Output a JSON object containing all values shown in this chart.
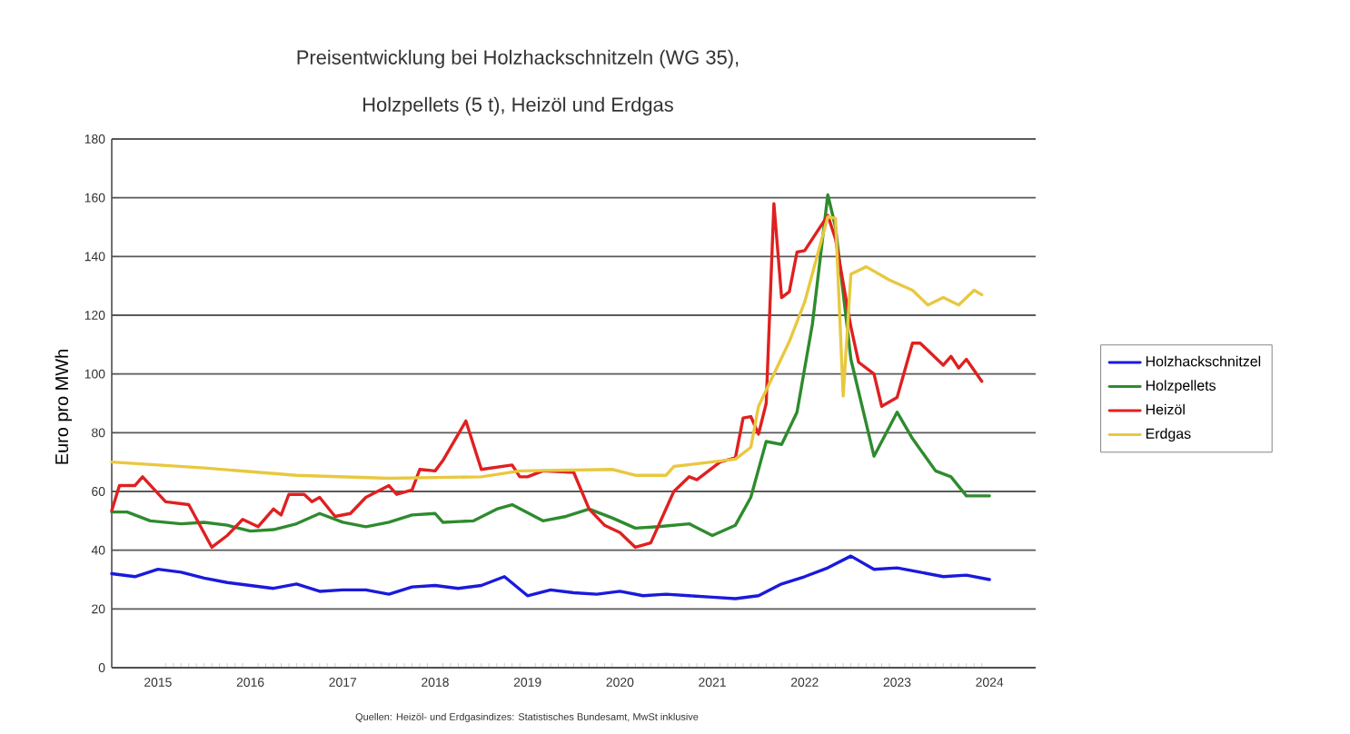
{
  "chart_data": {
    "type": "line",
    "title": "Preisentwicklung bei Holzhackschnitzeln (WG 35),",
    "subtitle": "Holzpellets (5 t), Heizöl und Erdgas",
    "ylabel": "Euro pro MWh",
    "xlim": [
      "2015-01",
      "2025-01"
    ],
    "xticks": [
      {
        "value": "2015-07",
        "label": "2015"
      },
      {
        "value": "2016-01",
        "label": null
      },
      {
        "value": "2016-07",
        "label": "2016"
      },
      {
        "value": "2017-01",
        "label": null
      },
      {
        "value": "2017-07",
        "label": "2017"
      },
      {
        "value": "2018-01",
        "label": null
      },
      {
        "value": "2018-07",
        "label": "2018"
      },
      {
        "value": "2019-01",
        "label": null
      },
      {
        "value": "2019-07",
        "label": "2019"
      },
      {
        "value": "2020-01",
        "label": null
      },
      {
        "value": "2020-07",
        "label": "2020"
      },
      {
        "value": "2021-01",
        "label": null
      },
      {
        "value": "2021-07",
        "label": "2021"
      },
      {
        "value": "2022-01",
        "label": null
      },
      {
        "value": "2022-07",
        "label": "2022"
      },
      {
        "value": "2023-01",
        "label": null
      },
      {
        "value": "2023-07",
        "label": "2023"
      },
      {
        "value": "2024-01",
        "label": null
      },
      {
        "value": "2024-07",
        "label": "2024"
      }
    ],
    "ylim": [
      0,
      180
    ],
    "yticks": [
      0,
      20,
      40,
      60,
      80,
      100,
      120,
      140,
      160,
      180
    ],
    "grid": "y",
    "legend": "right",
    "marker": "none",
    "line_style": "solid",
    "series": [
      {
        "name": "Holzhackschnitzel",
        "color": "#1a1adc",
        "x": [
          "2015-01",
          "2015-04",
          "2015-07",
          "2015-10",
          "2016-01",
          "2016-04",
          "2016-07",
          "2016-10",
          "2017-01",
          "2017-04",
          "2017-07",
          "2017-10",
          "2018-01",
          "2018-04",
          "2018-07",
          "2018-10",
          "2019-01",
          "2019-04",
          "2019-07",
          "2019-10",
          "2020-01",
          "2020-04",
          "2020-07",
          "2020-10",
          "2021-01",
          "2021-04",
          "2021-07",
          "2021-10",
          "2022-01",
          "2022-04",
          "2022-07",
          "2022-10",
          "2023-01",
          "2023-04",
          "2023-07",
          "2023-10",
          "2024-01",
          "2024-04",
          "2024-07"
        ],
        "values": [
          32,
          31,
          33.5,
          32.5,
          30.5,
          29,
          28,
          27,
          28.5,
          26,
          26.5,
          26.5,
          25,
          27.5,
          28,
          27,
          28,
          31,
          24.5,
          26.5,
          25.5,
          25,
          26,
          24.5,
          25,
          24.5,
          24,
          23.5,
          24.5,
          28.5,
          31,
          34,
          38,
          33.5,
          34,
          32.5,
          31,
          31.5,
          30
        ]
      },
      {
        "name": "Holzpellets",
        "color": "#2e8b2e",
        "x": [
          "2015-01",
          "2015-03",
          "2015-06",
          "2015-10",
          "2016-01",
          "2016-04",
          "2016-07",
          "2016-10",
          "2017-01",
          "2017-04",
          "2017-07",
          "2017-10",
          "2018-01",
          "2018-04",
          "2018-07",
          "2018-08",
          "2018-12",
          "2019-03",
          "2019-05",
          "2019-09",
          "2019-12",
          "2020-03",
          "2020-06",
          "2020-09",
          "2020-12",
          "2021-04",
          "2021-07",
          "2021-10",
          "2021-12",
          "2022-02",
          "2022-04",
          "2022-06",
          "2022-08",
          "2022-10",
          "2022-11",
          "2023-01",
          "2023-04",
          "2023-07",
          "2023-09",
          "2023-12",
          "2024-02",
          "2024-04",
          "2024-07"
        ],
        "values": [
          53,
          53,
          50,
          49,
          49.5,
          48.5,
          46.5,
          47,
          49,
          52.5,
          49.5,
          48,
          49.5,
          52,
          52.5,
          49.5,
          50,
          54,
          55.5,
          50,
          51.5,
          54,
          51,
          47.5,
          48,
          49,
          45,
          48.5,
          58,
          77,
          76,
          87,
          117,
          161,
          150,
          105,
          72,
          87,
          78,
          67,
          65,
          58.5,
          58.5
        ]
      },
      {
        "name": "Heizöl",
        "color": "#e02020",
        "x": [
          "2015-01",
          "2015-02",
          "2015-04",
          "2015-05",
          "2015-08",
          "2015-11",
          "2016-02",
          "2016-04",
          "2016-06",
          "2016-08",
          "2016-10",
          "2016-11",
          "2016-12",
          "2017-02",
          "2017-03",
          "2017-04",
          "2017-06",
          "2017-08",
          "2017-10",
          "2018-01",
          "2018-02",
          "2018-04",
          "2018-05",
          "2018-07",
          "2018-08",
          "2018-11",
          "2019-01",
          "2019-05",
          "2019-06",
          "2019-07",
          "2019-09",
          "2020-01",
          "2020-03",
          "2020-05",
          "2020-07",
          "2020-09",
          "2020-11",
          "2021-02",
          "2021-04",
          "2021-05",
          "2021-08",
          "2021-10",
          "2021-11",
          "2021-12",
          "2022-01",
          "2022-02",
          "2022-03",
          "2022-04",
          "2022-05",
          "2022-06",
          "2022-07",
          "2022-10",
          "2022-11",
          "2023-01",
          "2023-02",
          "2023-04",
          "2023-05",
          "2023-07",
          "2023-09",
          "2023-10",
          "2024-01",
          "2024-02",
          "2024-03",
          "2024-04",
          "2024-06"
        ],
        "values": [
          53.5,
          62,
          62,
          65,
          56.5,
          55.5,
          41,
          45,
          50.5,
          48,
          54,
          52,
          59,
          59,
          56.5,
          58,
          51.5,
          52.5,
          58,
          62,
          59,
          60.5,
          67.5,
          67,
          70.5,
          84,
          67.5,
          69,
          65,
          65,
          67,
          66.5,
          54,
          48.5,
          46,
          41,
          42.5,
          60,
          65,
          64,
          70,
          71.5,
          85,
          85.5,
          79.5,
          90,
          158,
          126,
          128,
          141.5,
          142,
          154,
          146,
          116,
          104,
          100,
          89,
          92,
          110.5,
          110.5,
          103,
          106,
          102,
          105,
          97.5
        ]
      },
      {
        "name": "Erdgas",
        "color": "#e8c840",
        "x": [
          "2015-01",
          "2016-01",
          "2017-01",
          "2018-01",
          "2019-01",
          "2019-06",
          "2020-06",
          "2020-09",
          "2021-01",
          "2021-02",
          "2021-10",
          "2021-12",
          "2022-01",
          "2022-03",
          "2022-05",
          "2022-07",
          "2022-10",
          "2022-11",
          "2022-12",
          "2023-01",
          "2023-03",
          "2023-06",
          "2023-09",
          "2023-11",
          "2024-01",
          "2024-03",
          "2024-05",
          "2024-06"
        ],
        "values": [
          70,
          68,
          65.5,
          64.5,
          65,
          67,
          67.5,
          65.5,
          65.5,
          68.5,
          71,
          75,
          89,
          100,
          111,
          124.5,
          153.5,
          153,
          92.5,
          134,
          136.5,
          132,
          128.5,
          123.5,
          126,
          123.5,
          128.5,
          127
        ]
      }
    ],
    "annotations": [
      "Quellen: Heizöl- und Erdgasindizes: Statistisches Bundesamt, MwSt inklusive"
    ]
  }
}
